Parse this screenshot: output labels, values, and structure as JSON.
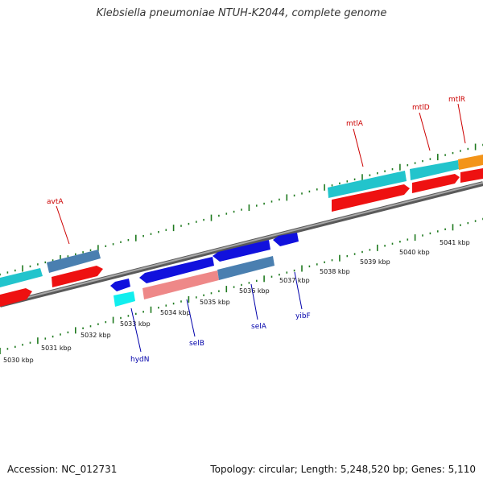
{
  "title": "Klebsiella pneumoniae NTUH-K2044, complete genome",
  "accession": "Accession: NC_012731",
  "topology": "Topology: circular; Length: 5,248,520 bp; Genes: 5,110",
  "colors": {
    "backbone": "#7a7a7a",
    "tick": "#1f7a1f",
    "forward_label": "#cc0000",
    "reverse_label": "#0000aa",
    "cds_red": "#ee1111",
    "cyan": "#22c4cc",
    "steelblue": "#4a7fb0",
    "blue": "#1111dd",
    "pink": "#ee8888",
    "orange": "#f39419",
    "bright_cyan": "#11eeee"
  },
  "chart_data": {
    "type": "linear-genome-map",
    "scale_unit": "kbp",
    "scale_labels": [
      "5030 kbp",
      "5031 kbp",
      "5032 kbp",
      "5033 kbp",
      "5034 kbp",
      "5035 kbp",
      "5036 kbp",
      "5037 kbp",
      "5038 kbp",
      "5039 kbp",
      "5040 kbp",
      "5041 kbp"
    ],
    "forward_gene_labels": [
      "avtA",
      "mtlA",
      "mtlD",
      "mtlR"
    ],
    "reverse_gene_labels": [
      "hydN",
      "selB",
      "selA",
      "yibF"
    ]
  }
}
